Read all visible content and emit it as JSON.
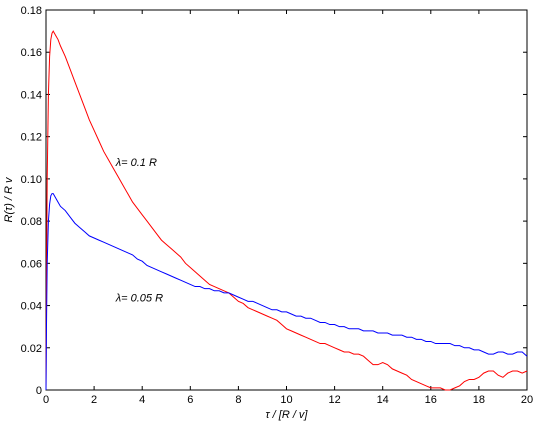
{
  "chart_data": {
    "type": "line",
    "xlabel": "τ / [R / v]",
    "ylabel": "R(τ) / R v",
    "xlim": [
      0,
      20
    ],
    "ylim": [
      0,
      0.18
    ],
    "grid": false,
    "legend": "none",
    "x_ticks": [
      0,
      2,
      4,
      6,
      8,
      10,
      12,
      14,
      16,
      18,
      20
    ],
    "x_tick_labels": [
      "0",
      "2",
      "4",
      "6",
      "8",
      "10",
      "12",
      "14",
      "16",
      "18",
      "20"
    ],
    "y_ticks": [
      0,
      0.02,
      0.04,
      0.06,
      0.08,
      0.1,
      0.12,
      0.14,
      0.16,
      0.18
    ],
    "y_tick_labels": [
      "0",
      "0.02",
      "0.04",
      "0.06",
      "0.08",
      "0.10",
      "0.12",
      "0.14",
      "0.16",
      "0.18"
    ],
    "annotations": [
      {
        "text": "λ= 0.1 R",
        "x": 2.9,
        "y": 0.106
      },
      {
        "text": "λ= 0.05 R",
        "x": 2.9,
        "y": 0.042
      }
    ],
    "series": [
      {
        "color": "#ff0000",
        "x": [
          0,
          0.02,
          0.05,
          0.1,
          0.15,
          0.2,
          0.25,
          0.3,
          0.35,
          0.4,
          0.5,
          0.6,
          0.8,
          1.0,
          1.2,
          1.4,
          1.6,
          1.8,
          2.0,
          2.2,
          2.4,
          2.6,
          2.8,
          3.0,
          3.2,
          3.4,
          3.6,
          3.8,
          4.0,
          4.2,
          4.4,
          4.6,
          4.8,
          5.0,
          5.2,
          5.4,
          5.6,
          5.8,
          6.0,
          6.2,
          6.4,
          6.6,
          6.8,
          7.0,
          7.2,
          7.4,
          7.6,
          7.8,
          8.0,
          8.2,
          8.4,
          8.6,
          8.8,
          9.0,
          9.2,
          9.4,
          9.6,
          9.8,
          10.0,
          10.2,
          10.4,
          10.6,
          10.8,
          11.0,
          11.2,
          11.4,
          11.6,
          11.8,
          12.0,
          12.2,
          12.4,
          12.6,
          12.8,
          13.0,
          13.2,
          13.4,
          13.6,
          13.8,
          14.0,
          14.2,
          14.4,
          14.6,
          14.8,
          15.0,
          15.2,
          15.4,
          15.6,
          15.8,
          16.0,
          16.2,
          16.4,
          16.6,
          16.8,
          17.0,
          17.2,
          17.4,
          17.6,
          17.8,
          18.0,
          18.2,
          18.4,
          18.6,
          18.8,
          19.0,
          19.2,
          19.4,
          19.6,
          19.8,
          20.0
        ],
        "values": [
          0,
          0.05,
          0.1,
          0.14,
          0.158,
          0.166,
          0.169,
          0.17,
          0.169,
          0.168,
          0.166,
          0.163,
          0.158,
          0.152,
          0.146,
          0.14,
          0.134,
          0.128,
          0.123,
          0.118,
          0.113,
          0.109,
          0.105,
          0.101,
          0.097,
          0.093,
          0.089,
          0.086,
          0.083,
          0.08,
          0.077,
          0.074,
          0.071,
          0.069,
          0.067,
          0.065,
          0.063,
          0.06,
          0.058,
          0.056,
          0.054,
          0.052,
          0.05,
          0.049,
          0.048,
          0.047,
          0.046,
          0.044,
          0.042,
          0.041,
          0.039,
          0.038,
          0.037,
          0.036,
          0.035,
          0.034,
          0.033,
          0.031,
          0.029,
          0.028,
          0.027,
          0.026,
          0.025,
          0.024,
          0.023,
          0.022,
          0.022,
          0.021,
          0.02,
          0.019,
          0.018,
          0.018,
          0.017,
          0.017,
          0.016,
          0.014,
          0.012,
          0.012,
          0.013,
          0.012,
          0.01,
          0.009,
          0.008,
          0.007,
          0.005,
          0.004,
          0.003,
          0.002,
          0.001,
          0.001,
          0.001,
          0.0,
          0.0,
          0.001,
          0.002,
          0.004,
          0.005,
          0.005,
          0.006,
          0.008,
          0.009,
          0.009,
          0.007,
          0.006,
          0.008,
          0.009,
          0.009,
          0.008,
          0.009
        ]
      },
      {
        "color": "#0000ff",
        "x": [
          0,
          0.02,
          0.05,
          0.1,
          0.15,
          0.2,
          0.25,
          0.3,
          0.35,
          0.4,
          0.5,
          0.6,
          0.8,
          1.0,
          1.2,
          1.4,
          1.6,
          1.8,
          2.0,
          2.2,
          2.4,
          2.6,
          2.8,
          3.0,
          3.2,
          3.4,
          3.6,
          3.8,
          4.0,
          4.2,
          4.4,
          4.6,
          4.8,
          5.0,
          5.2,
          5.4,
          5.6,
          5.8,
          6.0,
          6.2,
          6.4,
          6.6,
          6.8,
          7.0,
          7.2,
          7.4,
          7.6,
          7.8,
          8.0,
          8.2,
          8.4,
          8.6,
          8.8,
          9.0,
          9.2,
          9.4,
          9.6,
          9.8,
          10.0,
          10.2,
          10.4,
          10.6,
          10.8,
          11.0,
          11.2,
          11.4,
          11.6,
          11.8,
          12.0,
          12.2,
          12.4,
          12.6,
          12.8,
          13.0,
          13.2,
          13.4,
          13.6,
          13.8,
          14.0,
          14.2,
          14.4,
          14.6,
          14.8,
          15.0,
          15.2,
          15.4,
          15.6,
          15.8,
          16.0,
          16.2,
          16.4,
          16.6,
          16.8,
          17.0,
          17.2,
          17.4,
          17.6,
          17.8,
          18.0,
          18.2,
          18.4,
          18.6,
          18.8,
          19.0,
          19.2,
          19.4,
          19.6,
          19.8,
          20.0
        ],
        "values": [
          0,
          0.03,
          0.06,
          0.08,
          0.088,
          0.092,
          0.093,
          0.093,
          0.092,
          0.091,
          0.089,
          0.087,
          0.085,
          0.082,
          0.079,
          0.077,
          0.075,
          0.073,
          0.072,
          0.071,
          0.07,
          0.069,
          0.068,
          0.067,
          0.066,
          0.065,
          0.064,
          0.062,
          0.061,
          0.059,
          0.058,
          0.057,
          0.056,
          0.055,
          0.054,
          0.053,
          0.052,
          0.051,
          0.05,
          0.049,
          0.049,
          0.048,
          0.048,
          0.047,
          0.047,
          0.046,
          0.046,
          0.045,
          0.044,
          0.043,
          0.042,
          0.042,
          0.041,
          0.04,
          0.039,
          0.038,
          0.038,
          0.037,
          0.037,
          0.036,
          0.035,
          0.035,
          0.034,
          0.034,
          0.033,
          0.032,
          0.032,
          0.031,
          0.031,
          0.03,
          0.03,
          0.029,
          0.029,
          0.029,
          0.028,
          0.028,
          0.028,
          0.027,
          0.027,
          0.027,
          0.026,
          0.026,
          0.026,
          0.025,
          0.025,
          0.024,
          0.024,
          0.023,
          0.023,
          0.022,
          0.022,
          0.022,
          0.022,
          0.021,
          0.021,
          0.02,
          0.02,
          0.019,
          0.019,
          0.018,
          0.017,
          0.017,
          0.018,
          0.018,
          0.017,
          0.017,
          0.018,
          0.018,
          0.016
        ]
      }
    ]
  }
}
